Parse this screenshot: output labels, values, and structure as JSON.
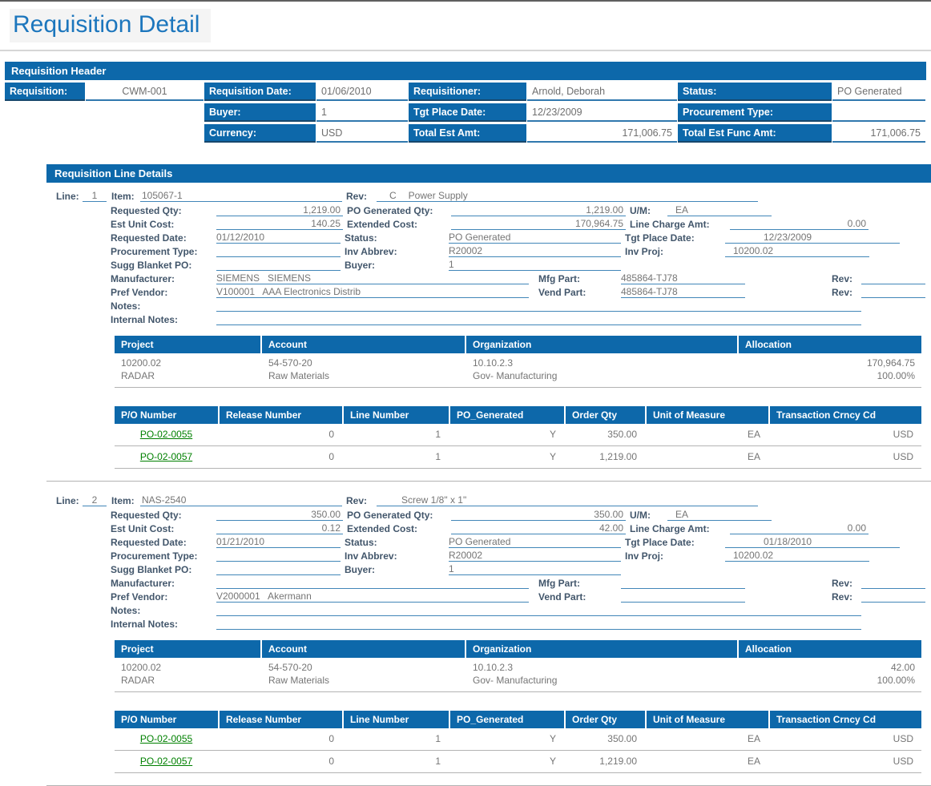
{
  "page": {
    "title": "Requisition Detail"
  },
  "colors": {
    "accent_blue": "#0d68aa",
    "title_blue": "#1c76bd",
    "link_green": "#008000"
  },
  "header": {
    "title": "Requisition Header",
    "fields": {
      "requisition": {
        "label": "Requisition:",
        "value": "CWM-001"
      },
      "requisition_date": {
        "label": "Requisition Date:",
        "value": "01/06/2010"
      },
      "requisitioner": {
        "label": "Requisitioner:",
        "value": "Arnold, Deborah"
      },
      "status": {
        "label": "Status:",
        "value": "PO Generated"
      },
      "buyer": {
        "label": "Buyer:",
        "value": "1"
      },
      "tgt_place_date": {
        "label": "Tgt Place Date:",
        "value": "12/23/2009"
      },
      "procurement_type": {
        "label": "Procurement Type:",
        "value": ""
      },
      "currency": {
        "label": "Currency:",
        "value": "USD"
      },
      "total_est_amt": {
        "label": "Total Est Amt:",
        "value": "171,006.75"
      },
      "total_est_func_amt": {
        "label": "Total Est Func Amt:",
        "value": "171,006.75"
      }
    }
  },
  "line_details": {
    "title": "Requisition Line Details",
    "labels": {
      "line": "Line:",
      "item": "Item:",
      "rev": "Rev:",
      "requested_qty": "Requested Qty:",
      "po_generated_qty": "PO Generated Qty:",
      "um": "U/M:",
      "est_unit_cost": "Est Unit Cost:",
      "extended_cost": "Extended Cost:",
      "line_charge_amt": "Line Charge Amt:",
      "requested_date": "Requested Date:",
      "status": "Status:",
      "tgt_place_date": "Tgt Place Date:",
      "procurement_type": "Procurement Type:",
      "inv_abbrev": "Inv Abbrev:",
      "inv_proj": "Inv Proj:",
      "sugg_blanket_po": "Sugg Blanket PO:",
      "buyer": "Buyer:",
      "manufacturer": "Manufacturer:",
      "mfg_part": "Mfg Part:",
      "pref_vendor": "Pref Vendor:",
      "vend_part": "Vend Part:",
      "notes": "Notes:",
      "internal_notes": "Internal Notes:"
    },
    "alloc_headers": [
      "Project",
      "Account",
      "Organization",
      "Allocation"
    ],
    "po_headers": [
      "P/O Number",
      "Release Number",
      "Line Number",
      "PO_Generated",
      "Order Qty",
      "Unit of Measure",
      "Transaction Crncy Cd"
    ],
    "lines": [
      {
        "line_no": "1",
        "item": "105067-1",
        "rev": "C",
        "rev_desc": "Power Supply",
        "requested_qty": "1,219.00",
        "po_generated_qty": "1,219.00",
        "um": "EA",
        "est_unit_cost": "140.25",
        "extended_cost": "170,964.75",
        "line_charge_amt": "0.00",
        "requested_date": "01/12/2010",
        "status": "PO Generated",
        "tgt_place_date": "12/23/2009",
        "procurement_type": "",
        "inv_abbrev": "R20002",
        "inv_proj": "10200.02",
        "sugg_blanket_po": "",
        "buyer": "1",
        "manufacturer": "SIEMENS   SIEMENS",
        "mfg_part": "485864-TJ78",
        "mfg_rev": "",
        "pref_vendor": "V100001   AAA Electronics Distrib",
        "vend_part": "485864-TJ78",
        "vend_rev": "",
        "notes": "",
        "internal_notes": "",
        "alloc_rows": [
          [
            "10200.02",
            "54-570-20",
            "10.10.2.3",
            "170,964.75"
          ],
          [
            "RADAR",
            "Raw Materials",
            "Gov- Manufacturing",
            "100.00%"
          ]
        ],
        "po_rows": [
          [
            "PO-02-0055",
            "0",
            "1",
            "Y",
            "350.00",
            "EA",
            "USD"
          ],
          [
            "PO-02-0057",
            "0",
            "1",
            "Y",
            "1,219.00",
            "EA",
            "USD"
          ]
        ]
      },
      {
        "line_no": "2",
        "item": "NAS-2540",
        "rev": "",
        "rev_desc": "Screw 1/8\" x 1\"",
        "requested_qty": "350.00",
        "po_generated_qty": "350.00",
        "um": "EA",
        "est_unit_cost": "0.12",
        "extended_cost": "42.00",
        "line_charge_amt": "0.00",
        "requested_date": "01/21/2010",
        "status": "PO Generated",
        "tgt_place_date": "01/18/2010",
        "procurement_type": "",
        "inv_abbrev": "R20002",
        "inv_proj": "10200.02",
        "sugg_blanket_po": "",
        "buyer": "1",
        "manufacturer": "",
        "mfg_part": "",
        "mfg_rev": "",
        "pref_vendor": "V2000001   Akermann",
        "vend_part": "",
        "vend_rev": "",
        "notes": "",
        "internal_notes": "",
        "alloc_rows": [
          [
            "10200.02",
            "54-570-20",
            "10.10.2.3",
            "42.00"
          ],
          [
            "RADAR",
            "Raw Materials",
            "Gov- Manufacturing",
            "100.00%"
          ]
        ],
        "po_rows": [
          [
            "PO-02-0055",
            "0",
            "1",
            "Y",
            "350.00",
            "EA",
            "USD"
          ],
          [
            "PO-02-0057",
            "0",
            "1",
            "Y",
            "1,219.00",
            "EA",
            "USD"
          ]
        ]
      }
    ]
  }
}
